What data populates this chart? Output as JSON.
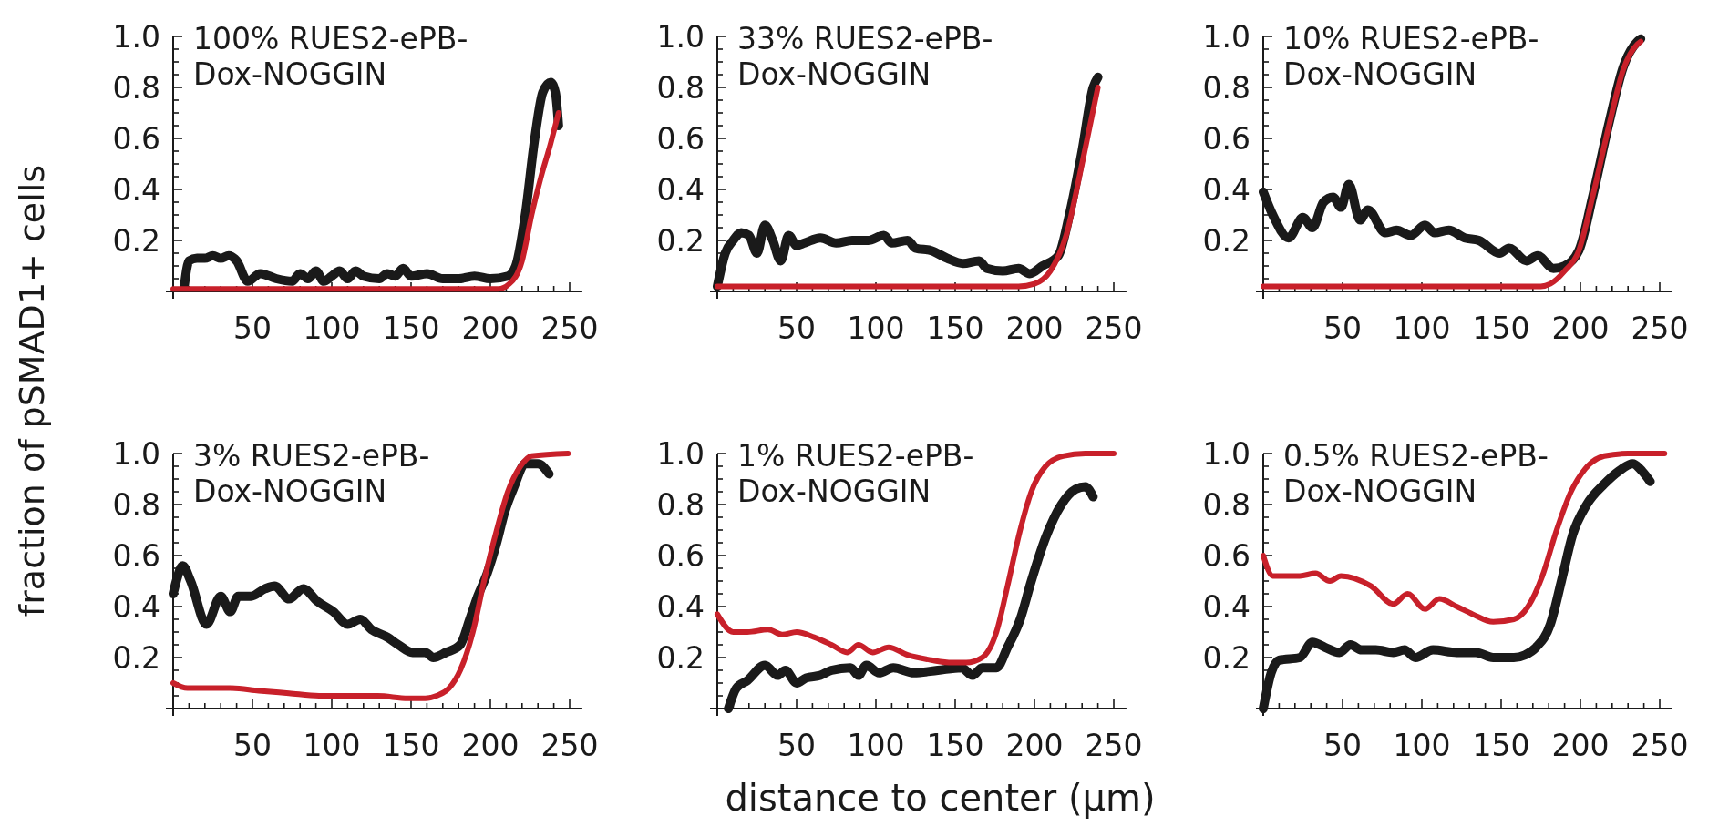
{
  "chart_data": [
    {
      "type": "line",
      "title": "100% RUES2-ePB-Dox-NOGGIN",
      "ylabel": "fraction of pSMAD1+ cells",
      "xlim": [
        0,
        258
      ],
      "ylim": [
        0,
        1
      ],
      "xticks": [
        {
          "value": 10,
          "label": null
        },
        {
          "value": 20,
          "label": null
        },
        {
          "value": 30,
          "label": null
        },
        {
          "value": 40,
          "label": null
        },
        50,
        {
          "value": 60,
          "label": null
        },
        {
          "value": 70,
          "label": null
        },
        {
          "value": 80,
          "label": null
        },
        {
          "value": 90,
          "label": null
        },
        100,
        {
          "value": 110,
          "label": null
        },
        {
          "value": 120,
          "label": null
        },
        {
          "value": 130,
          "label": null
        },
        {
          "value": 140,
          "label": null
        },
        150,
        {
          "value": 160,
          "label": null
        },
        {
          "value": 170,
          "label": null
        },
        {
          "value": 180,
          "label": null
        },
        {
          "value": 190,
          "label": null
        },
        200,
        {
          "value": 210,
          "label": null
        },
        {
          "value": 220,
          "label": null
        },
        {
          "value": 230,
          "label": null
        },
        {
          "value": 240,
          "label": null
        },
        250
      ],
      "yticks": [
        {
          "value": 0.05,
          "label": null
        },
        {
          "value": 0.1,
          "label": null
        },
        {
          "value": 0.15,
          "label": null
        },
        0.2,
        {
          "value": 0.25,
          "label": null
        },
        {
          "value": 0.3,
          "label": null
        },
        {
          "value": 0.35,
          "label": null
        },
        0.4,
        {
          "value": 0.45,
          "label": null
        },
        {
          "value": 0.5,
          "label": null
        },
        {
          "value": 0.55,
          "label": null
        },
        0.6,
        {
          "value": 0.65,
          "label": null
        },
        {
          "value": 0.7,
          "label": null
        },
        {
          "value": 0.75,
          "label": null
        },
        0.8,
        {
          "value": 0.85,
          "label": null
        },
        {
          "value": 0.9,
          "label": null
        },
        {
          "value": 0.95,
          "label": null
        },
        {
          "value": 1,
          "label": "1.0"
        }
      ],
      "series": [
        {
          "color": "#1a1a1a",
          "x": [
            7,
            10,
            15,
            20,
            25,
            30,
            35,
            40,
            47,
            55,
            65,
            75,
            80,
            85,
            90,
            95,
            100,
            105,
            110,
            115,
            120,
            130,
            135,
            140,
            145,
            150,
            160,
            170,
            180,
            190,
            200,
            211,
            216,
            222,
            228,
            233,
            238,
            241,
            243
          ],
          "values": [
            0.02,
            0.12,
            0.13,
            0.13,
            0.14,
            0.13,
            0.14,
            0.12,
            0.04,
            0.07,
            0.05,
            0.04,
            0.07,
            0.05,
            0.08,
            0.04,
            0.06,
            0.08,
            0.05,
            0.08,
            0.06,
            0.05,
            0.07,
            0.06,
            0.09,
            0.06,
            0.07,
            0.05,
            0.05,
            0.06,
            0.05,
            0.06,
            0.1,
            0.3,
            0.6,
            0.78,
            0.82,
            0.78,
            0.65
          ]
        },
        {
          "color": "#c8202a",
          "x": [
            0,
            100,
            205,
            212,
            220,
            226,
            232,
            238,
            243
          ],
          "values": [
            0.01,
            0.01,
            0.01,
            0.03,
            0.12,
            0.3,
            0.45,
            0.58,
            0.7
          ]
        }
      ]
    },
    {
      "type": "line",
      "title": "33% RUES2-ePB-Dox-NOGGIN",
      "xlim": [
        0,
        258
      ],
      "ylim": [
        0,
        1
      ],
      "xticks": [
        {
          "value": 10,
          "label": null
        },
        {
          "value": 20,
          "label": null
        },
        {
          "value": 30,
          "label": null
        },
        {
          "value": 40,
          "label": null
        },
        50,
        {
          "value": 60,
          "label": null
        },
        {
          "value": 70,
          "label": null
        },
        {
          "value": 80,
          "label": null
        },
        {
          "value": 90,
          "label": null
        },
        100,
        {
          "value": 110,
          "label": null
        },
        {
          "value": 120,
          "label": null
        },
        {
          "value": 130,
          "label": null
        },
        {
          "value": 140,
          "label": null
        },
        150,
        {
          "value": 160,
          "label": null
        },
        {
          "value": 170,
          "label": null
        },
        {
          "value": 180,
          "label": null
        },
        {
          "value": 190,
          "label": null
        },
        200,
        {
          "value": 210,
          "label": null
        },
        {
          "value": 220,
          "label": null
        },
        {
          "value": 230,
          "label": null
        },
        {
          "value": 240,
          "label": null
        },
        250
      ],
      "yticks": [
        {
          "value": 0.05,
          "label": null
        },
        {
          "value": 0.1,
          "label": null
        },
        {
          "value": 0.15,
          "label": null
        },
        0.2,
        {
          "value": 0.25,
          "label": null
        },
        {
          "value": 0.3,
          "label": null
        },
        {
          "value": 0.35,
          "label": null
        },
        0.4,
        {
          "value": 0.45,
          "label": null
        },
        {
          "value": 0.5,
          "label": null
        },
        {
          "value": 0.55,
          "label": null
        },
        0.6,
        {
          "value": 0.65,
          "label": null
        },
        {
          "value": 0.7,
          "label": null
        },
        {
          "value": 0.75,
          "label": null
        },
        0.8,
        {
          "value": 0.85,
          "label": null
        },
        {
          "value": 0.9,
          "label": null
        },
        {
          "value": 0.95,
          "label": null
        },
        {
          "value": 1,
          "label": "1.0"
        }
      ],
      "series": [
        {
          "color": "#1a1a1a",
          "x": [
            0,
            5,
            10,
            15,
            20,
            25,
            30,
            35,
            40,
            45,
            50,
            55,
            65,
            75,
            85,
            95,
            105,
            110,
            120,
            125,
            135,
            145,
            155,
            165,
            170,
            180,
            190,
            197,
            205,
            215,
            222,
            230,
            237,
            240
          ],
          "values": [
            0.02,
            0.15,
            0.2,
            0.23,
            0.22,
            0.15,
            0.26,
            0.2,
            0.12,
            0.22,
            0.18,
            0.19,
            0.21,
            0.19,
            0.2,
            0.2,
            0.22,
            0.19,
            0.2,
            0.17,
            0.16,
            0.13,
            0.11,
            0.12,
            0.09,
            0.08,
            0.09,
            0.07,
            0.1,
            0.14,
            0.3,
            0.55,
            0.8,
            0.84
          ]
        },
        {
          "color": "#c8202a",
          "x": [
            0,
            100,
            190,
            200,
            210,
            220,
            230,
            240
          ],
          "values": [
            0.02,
            0.02,
            0.02,
            0.03,
            0.08,
            0.22,
            0.5,
            0.8
          ]
        }
      ]
    },
    {
      "type": "line",
      "title": "10% RUES2-ePB-Dox-NOGGIN",
      "xlim": [
        0,
        258
      ],
      "ylim": [
        0,
        1
      ],
      "xticks": [
        {
          "value": 10,
          "label": null
        },
        {
          "value": 20,
          "label": null
        },
        {
          "value": 30,
          "label": null
        },
        {
          "value": 40,
          "label": null
        },
        50,
        {
          "value": 60,
          "label": null
        },
        {
          "value": 70,
          "label": null
        },
        {
          "value": 80,
          "label": null
        },
        {
          "value": 90,
          "label": null
        },
        100,
        {
          "value": 110,
          "label": null
        },
        {
          "value": 120,
          "label": null
        },
        {
          "value": 130,
          "label": null
        },
        {
          "value": 140,
          "label": null
        },
        150,
        {
          "value": 160,
          "label": null
        },
        {
          "value": 170,
          "label": null
        },
        {
          "value": 180,
          "label": null
        },
        {
          "value": 190,
          "label": null
        },
        200,
        {
          "value": 210,
          "label": null
        },
        {
          "value": 220,
          "label": null
        },
        {
          "value": 230,
          "label": null
        },
        {
          "value": 240,
          "label": null
        },
        250
      ],
      "yticks": [
        {
          "value": 0.05,
          "label": null
        },
        {
          "value": 0.1,
          "label": null
        },
        {
          "value": 0.15,
          "label": null
        },
        0.2,
        {
          "value": 0.25,
          "label": null
        },
        {
          "value": 0.3,
          "label": null
        },
        {
          "value": 0.35,
          "label": null
        },
        0.4,
        {
          "value": 0.45,
          "label": null
        },
        {
          "value": 0.5,
          "label": null
        },
        {
          "value": 0.55,
          "label": null
        },
        0.6,
        {
          "value": 0.65,
          "label": null
        },
        {
          "value": 0.7,
          "label": null
        },
        {
          "value": 0.75,
          "label": null
        },
        0.8,
        {
          "value": 0.85,
          "label": null
        },
        {
          "value": 0.9,
          "label": null
        },
        {
          "value": 0.95,
          "label": null
        },
        {
          "value": 1,
          "label": "1.0"
        }
      ],
      "series": [
        {
          "color": "#1a1a1a",
          "x": [
            0,
            6,
            16,
            25,
            31,
            38,
            44,
            49,
            54,
            61,
            66,
            77,
            84,
            93,
            102,
            108,
            117,
            127,
            136,
            149,
            155,
            166,
            173,
            183,
            190,
            199,
            208,
            218,
            227,
            236,
            238
          ],
          "values": [
            0.39,
            0.3,
            0.21,
            0.29,
            0.25,
            0.35,
            0.37,
            0.33,
            0.42,
            0.28,
            0.32,
            0.23,
            0.24,
            0.22,
            0.26,
            0.23,
            0.24,
            0.21,
            0.2,
            0.15,
            0.17,
            0.12,
            0.14,
            0.09,
            0.1,
            0.16,
            0.38,
            0.66,
            0.88,
            0.98,
            0.99
          ]
        },
        {
          "color": "#c8202a",
          "x": [
            0,
            100,
            175,
            181,
            190,
            199,
            208,
            218,
            227,
            236,
            238
          ],
          "values": [
            0.02,
            0.02,
            0.02,
            0.03,
            0.08,
            0.16,
            0.38,
            0.65,
            0.87,
            0.97,
            0.98
          ]
        }
      ]
    },
    {
      "type": "line",
      "title": "3% RUES2-ePB-Dox-NOGGIN",
      "xlim": [
        0,
        258
      ],
      "ylim": [
        0,
        1
      ],
      "xticks": [
        {
          "value": 10,
          "label": null
        },
        {
          "value": 20,
          "label": null
        },
        {
          "value": 30,
          "label": null
        },
        {
          "value": 40,
          "label": null
        },
        50,
        {
          "value": 60,
          "label": null
        },
        {
          "value": 70,
          "label": null
        },
        {
          "value": 80,
          "label": null
        },
        {
          "value": 90,
          "label": null
        },
        100,
        {
          "value": 110,
          "label": null
        },
        {
          "value": 120,
          "label": null
        },
        {
          "value": 130,
          "label": null
        },
        {
          "value": 140,
          "label": null
        },
        150,
        {
          "value": 160,
          "label": null
        },
        {
          "value": 170,
          "label": null
        },
        {
          "value": 180,
          "label": null
        },
        {
          "value": 190,
          "label": null
        },
        200,
        {
          "value": 210,
          "label": null
        },
        {
          "value": 220,
          "label": null
        },
        {
          "value": 230,
          "label": null
        },
        {
          "value": 240,
          "label": null
        },
        250
      ],
      "yticks": [
        {
          "value": 0.05,
          "label": null
        },
        {
          "value": 0.1,
          "label": null
        },
        {
          "value": 0.15,
          "label": null
        },
        0.2,
        {
          "value": 0.25,
          "label": null
        },
        {
          "value": 0.3,
          "label": null
        },
        {
          "value": 0.35,
          "label": null
        },
        0.4,
        {
          "value": 0.45,
          "label": null
        },
        {
          "value": 0.5,
          "label": null
        },
        {
          "value": 0.55,
          "label": null
        },
        0.6,
        {
          "value": 0.65,
          "label": null
        },
        {
          "value": 0.7,
          "label": null
        },
        {
          "value": 0.75,
          "label": null
        },
        0.8,
        {
          "value": 0.85,
          "label": null
        },
        {
          "value": 0.9,
          "label": null
        },
        {
          "value": 0.95,
          "label": null
        },
        {
          "value": 1,
          "label": "1.0"
        }
      ],
      "series": [
        {
          "color": "#1a1a1a",
          "x": [
            0,
            2,
            6,
            11,
            21,
            30,
            36,
            41,
            49,
            58,
            64,
            73,
            82,
            91,
            101,
            110,
            118,
            125,
            135,
            142,
            151,
            159,
            164,
            172,
            181,
            187,
            192,
            198,
            204,
            209,
            215,
            222,
            230,
            237
          ],
          "values": [
            0.45,
            0.5,
            0.56,
            0.5,
            0.33,
            0.44,
            0.38,
            0.44,
            0.44,
            0.47,
            0.48,
            0.43,
            0.47,
            0.42,
            0.38,
            0.33,
            0.35,
            0.31,
            0.28,
            0.25,
            0.22,
            0.22,
            0.2,
            0.22,
            0.25,
            0.35,
            0.44,
            0.53,
            0.65,
            0.77,
            0.87,
            0.96,
            0.96,
            0.92
          ]
        },
        {
          "color": "#c8202a",
          "x": [
            0,
            9,
            26,
            36,
            54,
            73,
            92,
            110,
            129,
            148,
            159,
            166,
            174,
            181,
            189,
            196,
            204,
            211,
            219,
            226,
            249
          ],
          "values": [
            0.1,
            0.08,
            0.08,
            0.08,
            0.07,
            0.06,
            0.05,
            0.05,
            0.05,
            0.04,
            0.04,
            0.05,
            0.08,
            0.15,
            0.3,
            0.5,
            0.7,
            0.85,
            0.95,
            0.99,
            1.0
          ]
        }
      ]
    },
    {
      "type": "line",
      "title": "1% RUES2-ePB-Dox-NOGGIN",
      "xlabel": "distance to center (µm)",
      "xlim": [
        0,
        258
      ],
      "ylim": [
        0,
        1
      ],
      "xticks": [
        {
          "value": 10,
          "label": null
        },
        {
          "value": 20,
          "label": null
        },
        {
          "value": 30,
          "label": null
        },
        {
          "value": 40,
          "label": null
        },
        50,
        {
          "value": 60,
          "label": null
        },
        {
          "value": 70,
          "label": null
        },
        {
          "value": 80,
          "label": null
        },
        {
          "value": 90,
          "label": null
        },
        100,
        {
          "value": 110,
          "label": null
        },
        {
          "value": 120,
          "label": null
        },
        {
          "value": 130,
          "label": null
        },
        {
          "value": 140,
          "label": null
        },
        150,
        {
          "value": 160,
          "label": null
        },
        {
          "value": 170,
          "label": null
        },
        {
          "value": 180,
          "label": null
        },
        {
          "value": 190,
          "label": null
        },
        200,
        {
          "value": 210,
          "label": null
        },
        {
          "value": 220,
          "label": null
        },
        {
          "value": 230,
          "label": null
        },
        {
          "value": 240,
          "label": null
        },
        250
      ],
      "yticks": [
        {
          "value": 0.05,
          "label": null
        },
        {
          "value": 0.1,
          "label": null
        },
        {
          "value": 0.15,
          "label": null
        },
        0.2,
        {
          "value": 0.25,
          "label": null
        },
        {
          "value": 0.3,
          "label": null
        },
        {
          "value": 0.35,
          "label": null
        },
        0.4,
        {
          "value": 0.45,
          "label": null
        },
        {
          "value": 0.5,
          "label": null
        },
        {
          "value": 0.55,
          "label": null
        },
        0.6,
        {
          "value": 0.65,
          "label": null
        },
        {
          "value": 0.7,
          "label": null
        },
        {
          "value": 0.75,
          "label": null
        },
        0.8,
        {
          "value": 0.85,
          "label": null
        },
        {
          "value": 0.9,
          "label": null
        },
        {
          "value": 0.95,
          "label": null
        },
        {
          "value": 1,
          "label": "1.0"
        }
      ],
      "series": [
        {
          "color": "#1a1a1a",
          "x": [
            7,
            12,
            19,
            30,
            38,
            43,
            50,
            56,
            65,
            72,
            84,
            89,
            94,
            102,
            111,
            124,
            139,
            154,
            161,
            167,
            176,
            183,
            191,
            198,
            207,
            217,
            226,
            232,
            237
          ],
          "values": [
            0.0,
            0.08,
            0.11,
            0.17,
            0.13,
            0.15,
            0.1,
            0.12,
            0.13,
            0.15,
            0.16,
            0.13,
            0.17,
            0.14,
            0.16,
            0.14,
            0.15,
            0.16,
            0.13,
            0.16,
            0.16,
            0.24,
            0.35,
            0.5,
            0.67,
            0.8,
            0.86,
            0.87,
            0.83
          ]
        },
        {
          "color": "#c8202a",
          "x": [
            0,
            10,
            19,
            32,
            41,
            50,
            61,
            72,
            82,
            89,
            98,
            108,
            120,
            135,
            148,
            157,
            167,
            176,
            183,
            191,
            198,
            207,
            218,
            232,
            250
          ],
          "values": [
            0.37,
            0.3,
            0.3,
            0.31,
            0.29,
            0.3,
            0.28,
            0.25,
            0.22,
            0.25,
            0.22,
            0.24,
            0.21,
            0.19,
            0.18,
            0.18,
            0.2,
            0.3,
            0.48,
            0.7,
            0.85,
            0.95,
            0.99,
            1.0,
            1.0
          ]
        }
      ]
    },
    {
      "type": "line",
      "title": "0.5% RUES2-ePB-Dox-NOGGIN",
      "xlim": [
        0,
        258
      ],
      "ylim": [
        0,
        1
      ],
      "xticks": [
        {
          "value": 10,
          "label": null
        },
        {
          "value": 20,
          "label": null
        },
        {
          "value": 30,
          "label": null
        },
        {
          "value": 40,
          "label": null
        },
        50,
        {
          "value": 60,
          "label": null
        },
        {
          "value": 70,
          "label": null
        },
        {
          "value": 80,
          "label": null
        },
        {
          "value": 90,
          "label": null
        },
        100,
        {
          "value": 110,
          "label": null
        },
        {
          "value": 120,
          "label": null
        },
        {
          "value": 130,
          "label": null
        },
        {
          "value": 140,
          "label": null
        },
        150,
        {
          "value": 160,
          "label": null
        },
        {
          "value": 170,
          "label": null
        },
        {
          "value": 180,
          "label": null
        },
        {
          "value": 190,
          "label": null
        },
        200,
        {
          "value": 210,
          "label": null
        },
        {
          "value": 220,
          "label": null
        },
        {
          "value": 230,
          "label": null
        },
        {
          "value": 240,
          "label": null
        },
        250
      ],
      "yticks": [
        {
          "value": 0.05,
          "label": null
        },
        {
          "value": 0.1,
          "label": null
        },
        {
          "value": 0.15,
          "label": null
        },
        0.2,
        {
          "value": 0.25,
          "label": null
        },
        {
          "value": 0.3,
          "label": null
        },
        {
          "value": 0.35,
          "label": null
        },
        0.4,
        {
          "value": 0.45,
          "label": null
        },
        {
          "value": 0.5,
          "label": null
        },
        {
          "value": 0.55,
          "label": null
        },
        0.6,
        {
          "value": 0.65,
          "label": null
        },
        {
          "value": 0.7,
          "label": null
        },
        {
          "value": 0.75,
          "label": null
        },
        0.8,
        {
          "value": 0.85,
          "label": null
        },
        {
          "value": 0.9,
          "label": null
        },
        {
          "value": 0.95,
          "label": null
        },
        {
          "value": 1,
          "label": "1.0"
        }
      ],
      "series": [
        {
          "color": "#1a1a1a",
          "x": [
            0,
            5,
            10,
            23,
            31,
            39,
            48,
            55,
            62,
            71,
            82,
            89,
            96,
            107,
            122,
            134,
            145,
            158,
            165,
            172,
            181,
            188,
            195,
            204,
            215,
            224,
            233,
            239,
            244
          ],
          "values": [
            0.0,
            0.14,
            0.19,
            0.2,
            0.26,
            0.24,
            0.22,
            0.25,
            0.23,
            0.23,
            0.22,
            0.23,
            0.2,
            0.23,
            0.22,
            0.22,
            0.2,
            0.2,
            0.21,
            0.24,
            0.33,
            0.5,
            0.68,
            0.8,
            0.88,
            0.93,
            0.96,
            0.93,
            0.89
          ]
        },
        {
          "color": "#c8202a",
          "x": [
            0,
            6,
            23,
            33,
            42,
            49,
            68,
            82,
            91,
            102,
            111,
            122,
            132,
            145,
            158,
            167,
            176,
            185,
            194,
            203,
            215,
            230,
            253
          ],
          "values": [
            0.6,
            0.52,
            0.52,
            0.53,
            0.5,
            0.52,
            0.48,
            0.41,
            0.45,
            0.39,
            0.43,
            0.4,
            0.37,
            0.34,
            0.35,
            0.4,
            0.52,
            0.7,
            0.85,
            0.94,
            0.99,
            1.0,
            1.0
          ]
        }
      ]
    }
  ]
}
